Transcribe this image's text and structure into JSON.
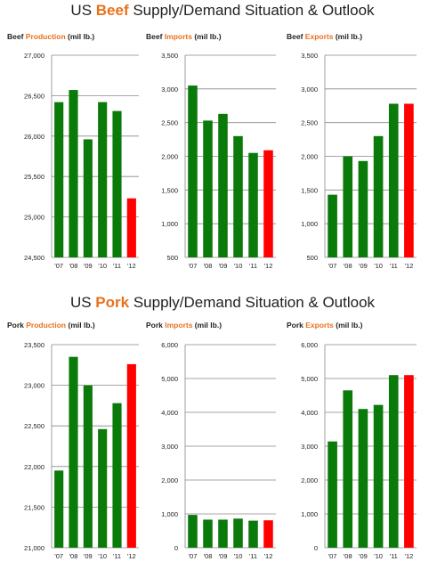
{
  "sections": [
    {
      "prefix": "US ",
      "highlight": "Beef",
      "suffix": " Supply/Demand Situation & Outlook"
    },
    {
      "prefix": "US ",
      "highlight": "Pork",
      "suffix": " Supply/Demand Situation & Outlook"
    }
  ],
  "colors": {
    "actual": "#0a7a0a",
    "forecast": "#ff0000",
    "highlight": "#e9711c",
    "grid": "#888888"
  },
  "chart_data": [
    {
      "type": "bar",
      "panel_label": "beef-production",
      "title_prefix": "Beef ",
      "title_highlight": "Production",
      "title_suffix": " (mil lb.)",
      "categories": [
        "'07",
        "'08",
        "'09",
        "'10",
        "'11",
        "'12"
      ],
      "values": [
        26420,
        26570,
        25960,
        26420,
        26310,
        25230
      ],
      "bar_colors": [
        "actual",
        "actual",
        "actual",
        "actual",
        "actual",
        "forecast"
      ],
      "ylim": [
        24500,
        27000
      ],
      "yticks": [
        "24,500",
        "25,000",
        "25,500",
        "26,000",
        "26,500",
        "27,000"
      ]
    },
    {
      "type": "bar",
      "panel_label": "beef-imports",
      "title_prefix": "Beef ",
      "title_highlight": "Imports",
      "title_suffix": " (mil lb.)",
      "categories": [
        "'07",
        "'08",
        "'09",
        "'10",
        "'11",
        "'12"
      ],
      "values": [
        3050,
        2530,
        2630,
        2300,
        2050,
        2090
      ],
      "bar_colors": [
        "actual",
        "actual",
        "actual",
        "actual",
        "actual",
        "forecast"
      ],
      "ylim": [
        500,
        3500
      ],
      "yticks": [
        "500",
        "1,000",
        "1,500",
        "2,000",
        "2,500",
        "3,000",
        "3,500"
      ]
    },
    {
      "type": "bar",
      "panel_label": "beef-exports",
      "title_prefix": "Beef ",
      "title_highlight": "Exports",
      "title_suffix": " (mil lb.)",
      "categories": [
        "'07",
        "'08",
        "'09",
        "'10",
        "'11",
        "'12"
      ],
      "values": [
        1430,
        2000,
        1930,
        2300,
        2780,
        2780
      ],
      "bar_colors": [
        "actual",
        "actual",
        "actual",
        "actual",
        "actual",
        "forecast"
      ],
      "ylim": [
        500,
        3500
      ],
      "yticks": [
        "500",
        "1,000",
        "1,500",
        "2,000",
        "2,500",
        "3,000",
        "3,500"
      ]
    },
    {
      "type": "bar",
      "panel_label": "pork-production",
      "title_prefix": "Pork ",
      "title_highlight": "Production",
      "title_suffix": " (mil lb.)",
      "categories": [
        "'07",
        "'08",
        "'09",
        "'10",
        "'11",
        "'12"
      ],
      "values": [
        21950,
        23350,
        23000,
        22460,
        22780,
        23260
      ],
      "bar_colors": [
        "actual",
        "actual",
        "actual",
        "actual",
        "actual",
        "forecast"
      ],
      "ylim": [
        21000,
        23500
      ],
      "yticks": [
        "21,000",
        "21,500",
        "22,000",
        "22,500",
        "23,000",
        "23,500"
      ]
    },
    {
      "type": "bar",
      "panel_label": "pork-imports",
      "title_prefix": "Pork ",
      "title_highlight": "Imports",
      "title_suffix": " (mil lb.)",
      "categories": [
        "'07",
        "'08",
        "'09",
        "'10",
        "'11",
        "'12"
      ],
      "values": [
        970,
        830,
        830,
        860,
        800,
        810
      ],
      "bar_colors": [
        "actual",
        "actual",
        "actual",
        "actual",
        "actual",
        "forecast"
      ],
      "ylim": [
        0,
        6000
      ],
      "yticks": [
        "0",
        "1,000",
        "2,000",
        "3,000",
        "4,000",
        "5,000",
        "6,000"
      ]
    },
    {
      "type": "bar",
      "panel_label": "pork-exports",
      "title_prefix": "Pork ",
      "title_highlight": "Exports",
      "title_suffix": " (mil lb.)",
      "categories": [
        "'07",
        "'08",
        "'09",
        "'10",
        "'11",
        "'12"
      ],
      "values": [
        3140,
        4650,
        4100,
        4220,
        5100,
        5100
      ],
      "bar_colors": [
        "actual",
        "actual",
        "actual",
        "actual",
        "actual",
        "forecast"
      ],
      "ylim": [
        0,
        6000
      ],
      "yticks": [
        "0",
        "1,000",
        "2,000",
        "3,000",
        "4,000",
        "5,000",
        "6,000"
      ]
    }
  ]
}
